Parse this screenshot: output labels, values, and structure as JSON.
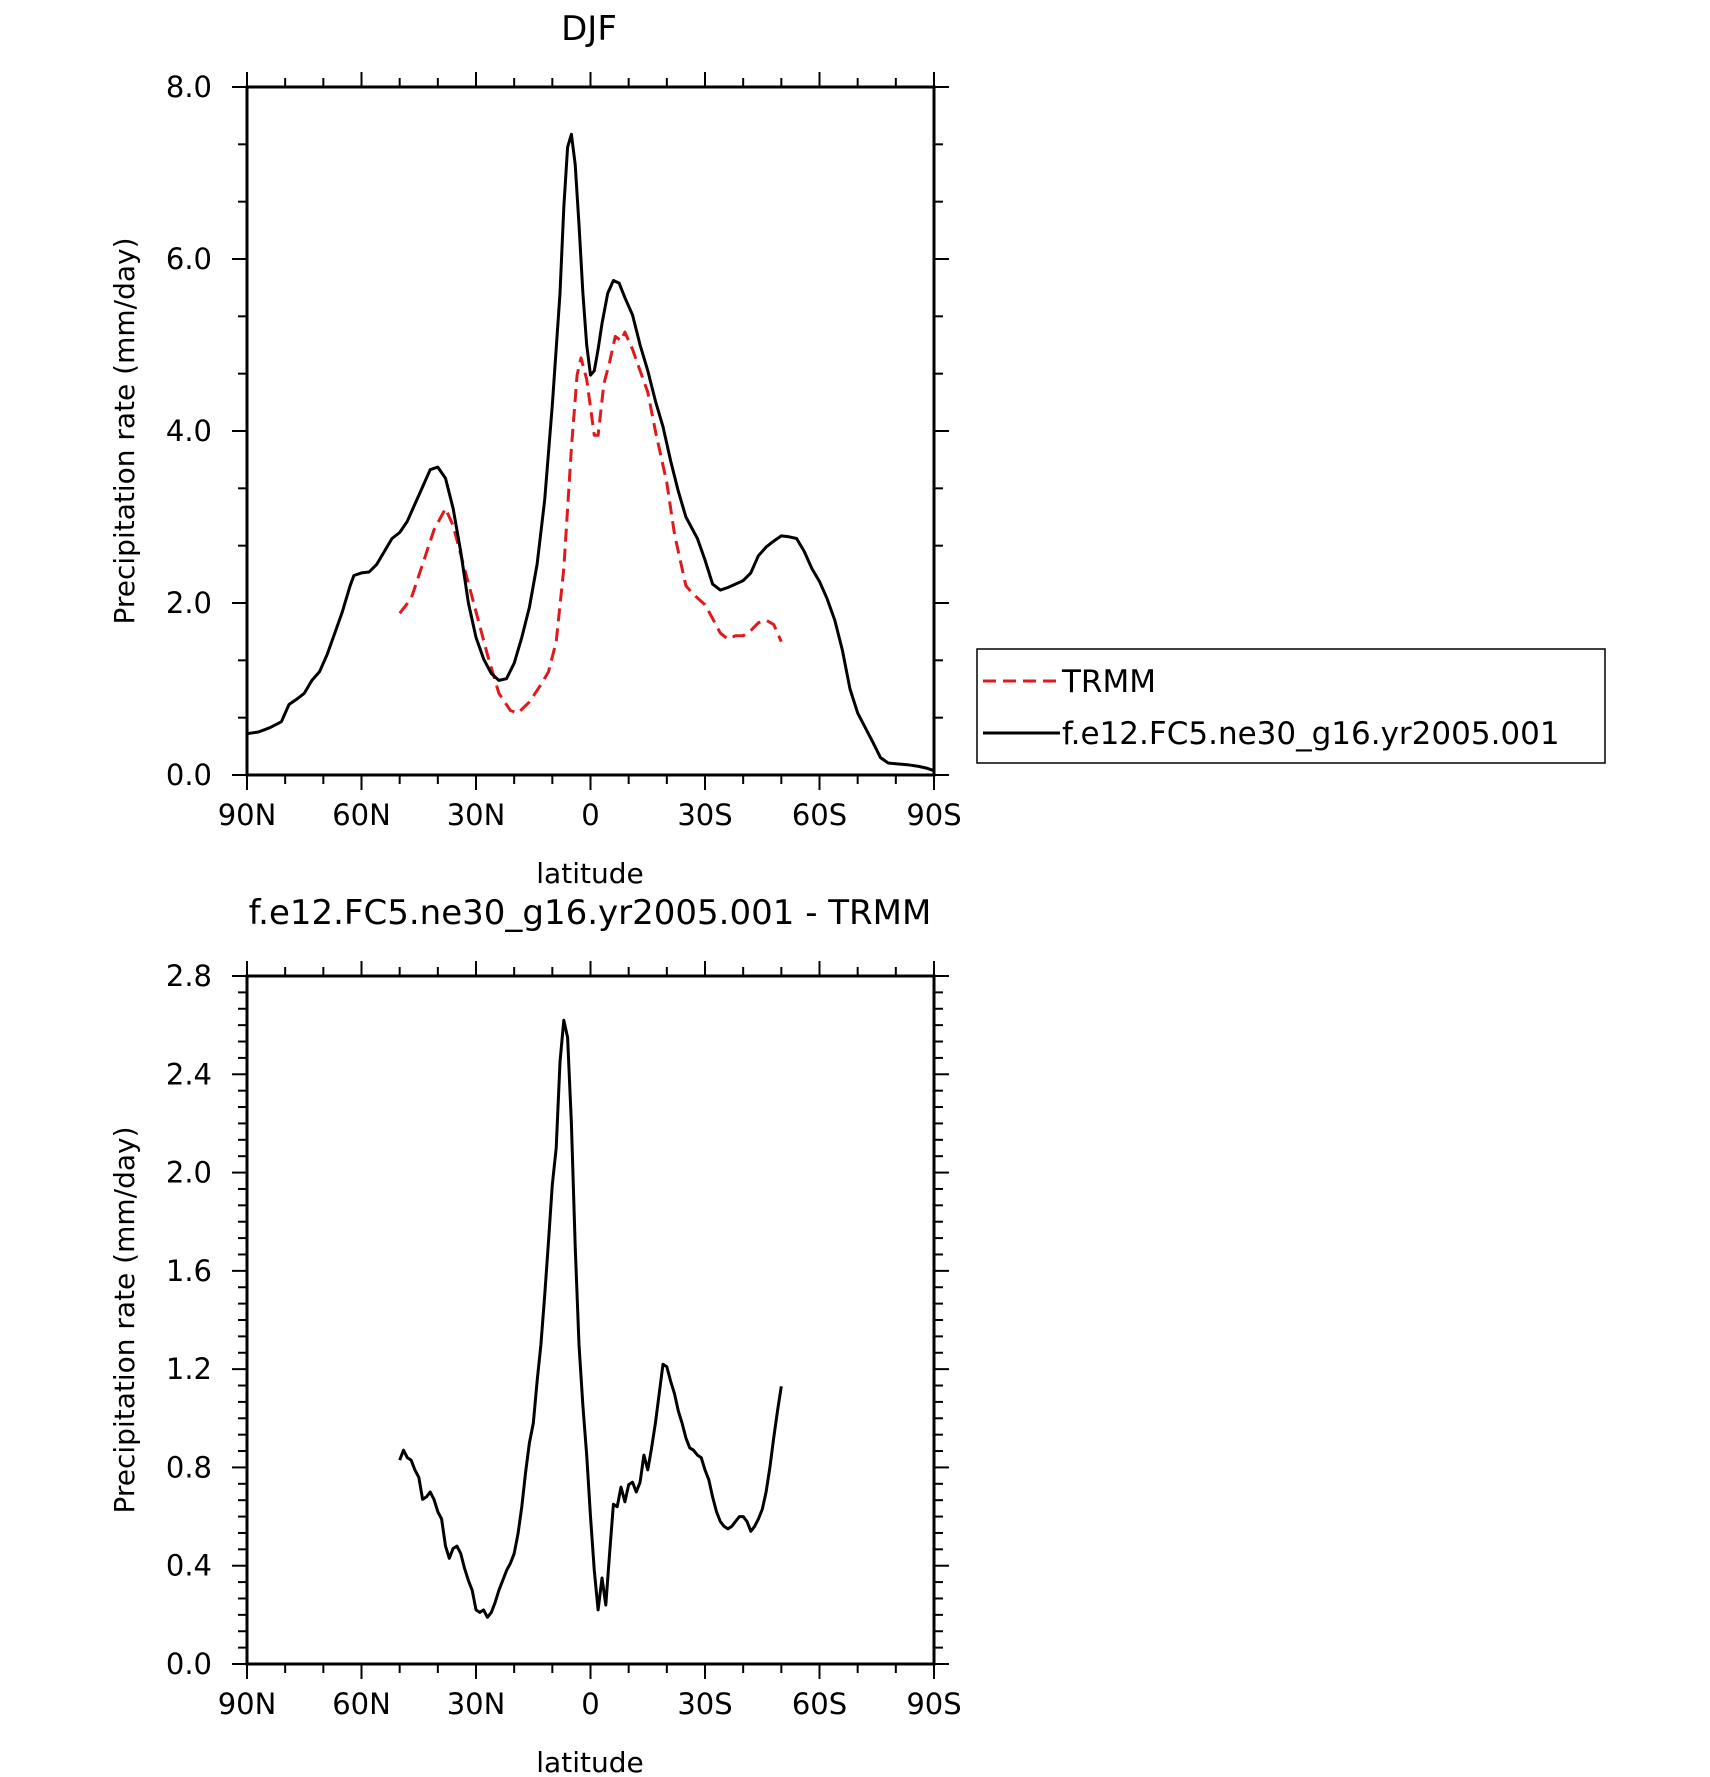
{
  "chart_data": [
    {
      "type": "line",
      "title": "DJF",
      "xlabel": "latitude",
      "ylabel": "Precipitation rate (mm/day)",
      "xlim": [
        90,
        -90
      ],
      "ylim": [
        0,
        8
      ],
      "x_ticks": [
        90,
        60,
        30,
        0,
        -30,
        -60,
        -90
      ],
      "x_tick_labels": [
        "90N",
        "60N",
        "30N",
        "0",
        "30S",
        "60S",
        "90S"
      ],
      "y_ticks": [
        0,
        2,
        4,
        6,
        8
      ],
      "y_tick_labels": [
        "0.0",
        "2.0",
        "4.0",
        "6.0",
        "8.0"
      ],
      "legend": {
        "placement": "right",
        "entries": [
          "TRMM",
          "f.e12.FC5.ne30_g16.yr2005.001"
        ]
      },
      "series": [
        {
          "name": "TRMM",
          "color": "#e0191c",
          "dash": "dashed",
          "points": [
            [
              50,
              1.88
            ],
            [
              47,
              2.05
            ],
            [
              44,
              2.45
            ],
            [
              41,
              2.85
            ],
            [
              38,
              3.1
            ],
            [
              36,
              2.9
            ],
            [
              33,
              2.4
            ],
            [
              30,
              1.9
            ],
            [
              27,
              1.4
            ],
            [
              24,
              0.95
            ],
            [
              21,
              0.75
            ],
            [
              19,
              0.72
            ],
            [
              16,
              0.85
            ],
            [
              13,
              1.05
            ],
            [
              11,
              1.2
            ],
            [
              9,
              1.55
            ],
            [
              7,
              2.4
            ],
            [
              5,
              3.8
            ],
            [
              3.5,
              4.65
            ],
            [
              2.5,
              4.85
            ],
            [
              1,
              4.6
            ],
            [
              -1,
              3.95
            ],
            [
              -2,
              3.95
            ],
            [
              -3.5,
              4.55
            ],
            [
              -5,
              4.8
            ],
            [
              -6.5,
              5.1
            ],
            [
              -8,
              5.05
            ],
            [
              -9,
              5.15
            ],
            [
              -11,
              4.95
            ],
            [
              -13,
              4.7
            ],
            [
              -15,
              4.45
            ],
            [
              -17,
              4.0
            ],
            [
              -20,
              3.4
            ],
            [
              -22,
              2.8
            ],
            [
              -24,
              2.4
            ],
            [
              -25,
              2.2
            ],
            [
              -27,
              2.1
            ],
            [
              -30,
              1.98
            ],
            [
              -32,
              1.82
            ],
            [
              -34,
              1.65
            ],
            [
              -36,
              1.58
            ],
            [
              -38,
              1.62
            ],
            [
              -40,
              1.62
            ],
            [
              -42,
              1.68
            ],
            [
              -44,
              1.77
            ],
            [
              -46,
              1.8
            ],
            [
              -48,
              1.75
            ],
            [
              -50,
              1.55
            ]
          ]
        },
        {
          "name": "f.e12.FC5.ne30_g16.yr2005.001",
          "color": "#000000",
          "dash": "solid",
          "points": [
            [
              90,
              0.48
            ],
            [
              87,
              0.5
            ],
            [
              84,
              0.55
            ],
            [
              81,
              0.62
            ],
            [
              79,
              0.82
            ],
            [
              77,
              0.88
            ],
            [
              75,
              0.95
            ],
            [
              73,
              1.1
            ],
            [
              71,
              1.2
            ],
            [
              69,
              1.4
            ],
            [
              67,
              1.65
            ],
            [
              65,
              1.9
            ],
            [
              63,
              2.2
            ],
            [
              62,
              2.32
            ],
            [
              60,
              2.35
            ],
            [
              58,
              2.36
            ],
            [
              56,
              2.45
            ],
            [
              54,
              2.6
            ],
            [
              52,
              2.75
            ],
            [
              50,
              2.82
            ],
            [
              48,
              2.95
            ],
            [
              46,
              3.15
            ],
            [
              44,
              3.35
            ],
            [
              42,
              3.55
            ],
            [
              40,
              3.58
            ],
            [
              38,
              3.45
            ],
            [
              36,
              3.1
            ],
            [
              34,
              2.6
            ],
            [
              32,
              2.0
            ],
            [
              30,
              1.6
            ],
            [
              28,
              1.35
            ],
            [
              26,
              1.18
            ],
            [
              24,
              1.1
            ],
            [
              22,
              1.12
            ],
            [
              20,
              1.3
            ],
            [
              18,
              1.6
            ],
            [
              16,
              1.95
            ],
            [
              14,
              2.45
            ],
            [
              12,
              3.2
            ],
            [
              10,
              4.3
            ],
            [
              8,
              5.6
            ],
            [
              7,
              6.6
            ],
            [
              6,
              7.3
            ],
            [
              5,
              7.45
            ],
            [
              4,
              7.1
            ],
            [
              3,
              6.4
            ],
            [
              2,
              5.6
            ],
            [
              1,
              5.0
            ],
            [
              0,
              4.65
            ],
            [
              -1,
              4.7
            ],
            [
              -2,
              4.95
            ],
            [
              -3,
              5.25
            ],
            [
              -4.5,
              5.6
            ],
            [
              -6,
              5.75
            ],
            [
              -7.5,
              5.72
            ],
            [
              -9,
              5.55
            ],
            [
              -11,
              5.35
            ],
            [
              -13,
              5.0
            ],
            [
              -15,
              4.7
            ],
            [
              -17,
              4.35
            ],
            [
              -19,
              4.05
            ],
            [
              -21,
              3.65
            ],
            [
              -23,
              3.3
            ],
            [
              -25,
              3.0
            ],
            [
              -28,
              2.75
            ],
            [
              -30,
              2.5
            ],
            [
              -32,
              2.22
            ],
            [
              -34,
              2.15
            ],
            [
              -36,
              2.18
            ],
            [
              -38,
              2.22
            ],
            [
              -40,
              2.26
            ],
            [
              -42,
              2.35
            ],
            [
              -44,
              2.55
            ],
            [
              -46,
              2.65
            ],
            [
              -48,
              2.72
            ],
            [
              -50,
              2.78
            ],
            [
              -52,
              2.77
            ],
            [
              -54,
              2.75
            ],
            [
              -56,
              2.6
            ],
            [
              -58,
              2.4
            ],
            [
              -60,
              2.25
            ],
            [
              -62,
              2.05
            ],
            [
              -64,
              1.8
            ],
            [
              -66,
              1.45
            ],
            [
              -68,
              1.0
            ],
            [
              -70,
              0.72
            ],
            [
              -72,
              0.55
            ],
            [
              -74,
              0.38
            ],
            [
              -76,
              0.2
            ],
            [
              -78,
              0.14
            ],
            [
              -80,
              0.13
            ],
            [
              -83,
              0.12
            ],
            [
              -86,
              0.1
            ],
            [
              -88,
              0.08
            ],
            [
              -90,
              0.05
            ]
          ]
        }
      ]
    },
    {
      "type": "line",
      "title": "f.e12.FC5.ne30_g16.yr2005.001 - TRMM",
      "xlabel": "latitude",
      "ylabel": "Precipitation rate (mm/day)",
      "xlim": [
        90,
        -90
      ],
      "ylim": [
        0,
        2.8
      ],
      "x_ticks": [
        90,
        60,
        30,
        0,
        -30,
        -60,
        -90
      ],
      "x_tick_labels": [
        "90N",
        "60N",
        "30N",
        "0",
        "30S",
        "60S",
        "90S"
      ],
      "y_ticks": [
        0,
        0.4,
        0.8,
        1.2,
        1.6,
        2.0,
        2.4,
        2.8
      ],
      "y_tick_labels": [
        "0.0",
        "0.4",
        "0.8",
        "1.2",
        "1.6",
        "2.0",
        "2.4",
        "2.8"
      ],
      "series": [
        {
          "color": "#000000",
          "dash": "solid",
          "points": [
            [
              50,
              0.83
            ],
            [
              49,
              0.87
            ],
            [
              48,
              0.84
            ],
            [
              47,
              0.83
            ],
            [
              46,
              0.79
            ],
            [
              45,
              0.76
            ],
            [
              44,
              0.67
            ],
            [
              43,
              0.68
            ],
            [
              42,
              0.7
            ],
            [
              41,
              0.67
            ],
            [
              40,
              0.62
            ],
            [
              39,
              0.59
            ],
            [
              38,
              0.48
            ],
            [
              37,
              0.43
            ],
            [
              36,
              0.47
            ],
            [
              35,
              0.48
            ],
            [
              34,
              0.45
            ],
            [
              33,
              0.39
            ],
            [
              32,
              0.34
            ],
            [
              31,
              0.3
            ],
            [
              30,
              0.22
            ],
            [
              29,
              0.21
            ],
            [
              28,
              0.22
            ],
            [
              27,
              0.19
            ],
            [
              26,
              0.21
            ],
            [
              25,
              0.25
            ],
            [
              24,
              0.3
            ],
            [
              23,
              0.34
            ],
            [
              22,
              0.38
            ],
            [
              21,
              0.41
            ],
            [
              20,
              0.45
            ],
            [
              19,
              0.53
            ],
            [
              18,
              0.64
            ],
            [
              17,
              0.78
            ],
            [
              16,
              0.9
            ],
            [
              15,
              0.98
            ],
            [
              14,
              1.15
            ],
            [
              13,
              1.3
            ],
            [
              12,
              1.5
            ],
            [
              11,
              1.72
            ],
            [
              10,
              1.95
            ],
            [
              9,
              2.1
            ],
            [
              8,
              2.45
            ],
            [
              7,
              2.62
            ],
            [
              6,
              2.55
            ],
            [
              5,
              2.2
            ],
            [
              4,
              1.7
            ],
            [
              3,
              1.3
            ],
            [
              2,
              1.05
            ],
            [
              1,
              0.85
            ],
            [
              0,
              0.6
            ],
            [
              -1,
              0.38
            ],
            [
              -2,
              0.22
            ],
            [
              -3,
              0.35
            ],
            [
              -4,
              0.24
            ],
            [
              -5,
              0.45
            ],
            [
              -6,
              0.65
            ],
            [
              -7,
              0.64
            ],
            [
              -8,
              0.72
            ],
            [
              -9,
              0.66
            ],
            [
              -10,
              0.73
            ],
            [
              -11,
              0.74
            ],
            [
              -12,
              0.7
            ],
            [
              -13,
              0.74
            ],
            [
              -14,
              0.85
            ],
            [
              -15,
              0.79
            ],
            [
              -16,
              0.88
            ],
            [
              -17,
              0.98
            ],
            [
              -18,
              1.1
            ],
            [
              -19,
              1.22
            ],
            [
              -20,
              1.21
            ],
            [
              -21,
              1.15
            ],
            [
              -22,
              1.1
            ],
            [
              -23,
              1.03
            ],
            [
              -24,
              0.98
            ],
            [
              -25,
              0.92
            ],
            [
              -26,
              0.88
            ],
            [
              -27,
              0.87
            ],
            [
              -28,
              0.85
            ],
            [
              -29,
              0.84
            ],
            [
              -30,
              0.79
            ],
            [
              -31,
              0.75
            ],
            [
              -32,
              0.68
            ],
            [
              -33,
              0.62
            ],
            [
              -34,
              0.58
            ],
            [
              -35,
              0.56
            ],
            [
              -36,
              0.55
            ],
            [
              -37,
              0.56
            ],
            [
              -38,
              0.58
            ],
            [
              -39,
              0.6
            ],
            [
              -40,
              0.6
            ],
            [
              -41,
              0.58
            ],
            [
              -42,
              0.54
            ],
            [
              -43,
              0.56
            ],
            [
              -44,
              0.59
            ],
            [
              -45,
              0.63
            ],
            [
              -46,
              0.7
            ],
            [
              -47,
              0.8
            ],
            [
              -48,
              0.92
            ],
            [
              -49,
              1.03
            ],
            [
              -50,
              1.13
            ]
          ]
        }
      ]
    }
  ]
}
